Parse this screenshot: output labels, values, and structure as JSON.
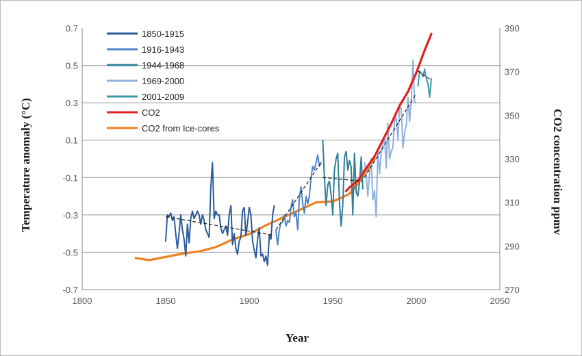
{
  "chart_data": {
    "type": "line",
    "xlabel": "Year",
    "ylabel": "Temperature anomaly (°C)",
    "y2label": "CO2 concentration ppmv",
    "xlim": [
      1800,
      2050
    ],
    "ylim": [
      -0.7,
      0.7
    ],
    "y2lim": [
      270,
      390
    ],
    "x_ticks": [
      "1800",
      "1850",
      "1900",
      "1950",
      "2000",
      "2050"
    ],
    "y_ticks": [
      "0.7",
      "0.5",
      "0.3",
      "0.1",
      "-0.1",
      "-0.3",
      "-0.5",
      "-0.7"
    ],
    "y2_ticks": [
      "390",
      "370",
      "350",
      "330",
      "310",
      "290",
      "270"
    ],
    "grid": "horizontal",
    "legend_position": "top-left",
    "series": [
      {
        "name": "1850-1915",
        "axis": "left",
        "color": "#2a5a9a",
        "x": [
          1850,
          1851,
          1852,
          1853,
          1854,
          1855,
          1856,
          1857,
          1858,
          1859,
          1860,
          1861,
          1862,
          1863,
          1864,
          1865,
          1866,
          1867,
          1868,
          1869,
          1870,
          1871,
          1872,
          1873,
          1874,
          1875,
          1876,
          1877,
          1878,
          1879,
          1880,
          1881,
          1882,
          1883,
          1884,
          1885,
          1886,
          1887,
          1888,
          1889,
          1890,
          1891,
          1892,
          1893,
          1894,
          1895,
          1896,
          1897,
          1898,
          1899,
          1900,
          1901,
          1902,
          1903,
          1904,
          1905,
          1906,
          1907,
          1908,
          1909,
          1910,
          1911,
          1912,
          1913,
          1914,
          1915
        ],
        "y": [
          -0.44,
          -0.3,
          -0.31,
          -0.29,
          -0.33,
          -0.31,
          -0.4,
          -0.48,
          -0.4,
          -0.3,
          -0.38,
          -0.43,
          -0.52,
          -0.35,
          -0.45,
          -0.32,
          -0.28,
          -0.32,
          -0.3,
          -0.28,
          -0.3,
          -0.35,
          -0.3,
          -0.33,
          -0.38,
          -0.4,
          -0.42,
          -0.15,
          -0.02,
          -0.32,
          -0.28,
          -0.3,
          -0.3,
          -0.37,
          -0.4,
          -0.38,
          -0.36,
          -0.41,
          -0.3,
          -0.25,
          -0.46,
          -0.4,
          -0.48,
          -0.51,
          -0.44,
          -0.42,
          -0.28,
          -0.26,
          -0.41,
          -0.34,
          -0.26,
          -0.3,
          -0.44,
          -0.49,
          -0.53,
          -0.43,
          -0.37,
          -0.52,
          -0.51,
          -0.55,
          -0.52,
          -0.57,
          -0.41,
          -0.43,
          -0.3,
          -0.25
        ]
      },
      {
        "name": "1916-1943",
        "axis": "left",
        "color": "#4d82c6",
        "x": [
          1916,
          1917,
          1918,
          1919,
          1920,
          1921,
          1922,
          1923,
          1924,
          1925,
          1926,
          1927,
          1928,
          1929,
          1930,
          1931,
          1932,
          1933,
          1934,
          1935,
          1936,
          1937,
          1938,
          1939,
          1940,
          1941,
          1942,
          1943
        ],
        "y": [
          -0.38,
          -0.46,
          -0.38,
          -0.34,
          -0.34,
          -0.3,
          -0.36,
          -0.33,
          -0.34,
          -0.26,
          -0.22,
          -0.31,
          -0.29,
          -0.38,
          -0.21,
          -0.15,
          -0.24,
          -0.29,
          -0.2,
          -0.24,
          -0.2,
          -0.1,
          -0.04,
          -0.06,
          -0.02,
          0.02,
          -0.04,
          -0.02
        ]
      },
      {
        "name": "1944-1968",
        "axis": "left",
        "color": "#2f7f97",
        "x": [
          1944,
          1945,
          1946,
          1947,
          1948,
          1949,
          1950,
          1951,
          1952,
          1953,
          1954,
          1955,
          1956,
          1957,
          1958,
          1959,
          1960,
          1961,
          1962,
          1963,
          1964,
          1965,
          1966,
          1967,
          1968
        ],
        "y": [
          0.1,
          -0.1,
          -0.25,
          -0.14,
          -0.12,
          -0.19,
          -0.3,
          -0.06,
          0.0,
          0.03,
          -0.23,
          -0.36,
          -0.25,
          0.01,
          0.04,
          -0.06,
          -0.01,
          -0.04,
          -0.3,
          0.03,
          -0.18,
          -0.2,
          -0.13,
          0.01,
          -0.16
        ]
      },
      {
        "name": "1969-2000",
        "axis": "left",
        "color": "#8fb1de",
        "x": [
          1969,
          1970,
          1971,
          1972,
          1973,
          1974,
          1975,
          1976,
          1977,
          1978,
          1979,
          1980,
          1981,
          1982,
          1983,
          1984,
          1985,
          1986,
          1987,
          1988,
          1989,
          1990,
          1991,
          1992,
          1993,
          1994,
          1995,
          1996,
          1997,
          1998,
          1999,
          2000
        ],
        "y": [
          -0.02,
          -0.08,
          -0.2,
          -0.08,
          0.0,
          -0.22,
          -0.17,
          -0.31,
          0.05,
          -0.08,
          0.03,
          0.08,
          0.12,
          -0.05,
          0.19,
          0.0,
          0.04,
          0.06,
          0.2,
          0.22,
          0.1,
          0.28,
          0.27,
          0.06,
          0.14,
          0.18,
          0.33,
          0.2,
          0.31,
          0.53,
          0.3,
          0.3
        ]
      },
      {
        "name": "2001-2009",
        "axis": "left",
        "color": "#3c9aa8",
        "x": [
          2001,
          2002,
          2003,
          2004,
          2005,
          2006,
          2007,
          2008,
          2009
        ],
        "y": [
          0.39,
          0.47,
          0.46,
          0.44,
          0.48,
          0.43,
          0.4,
          0.33,
          0.43
        ]
      },
      {
        "name": "CO2",
        "axis": "right",
        "color": "#e31d1d",
        "x": [
          1958,
          1960,
          1965,
          1970,
          1975,
          1980,
          1985,
          1990,
          1995,
          2000,
          2005,
          2009
        ],
        "y": [
          315.2,
          316.9,
          320.0,
          325.7,
          331.1,
          338.7,
          346.1,
          354.4,
          360.8,
          369.5,
          379.8,
          387.4
        ]
      },
      {
        "name": "CO2 from Ice-cores",
        "axis": "right",
        "color": "#f07f1e",
        "x": [
          1832,
          1840,
          1850,
          1860,
          1870,
          1880,
          1890,
          1900,
          1910,
          1920,
          1930,
          1940,
          1950,
          1955,
          1960,
          1965,
          1970,
          1975
        ],
        "y": [
          284.5,
          283.5,
          285.0,
          286.5,
          287.5,
          289.5,
          293.0,
          295.5,
          299.5,
          303.0,
          306.5,
          310.0,
          310.5,
          312.0,
          314.0,
          318.5,
          324.0,
          330.0
        ]
      }
    ],
    "trend_lines": [
      {
        "x": [
          1850,
          1915
        ],
        "y": [
          -0.31,
          -0.41
        ],
        "color": "#1a1a1a"
      },
      {
        "x": [
          1916,
          1943
        ],
        "y": [
          -0.38,
          -0.02
        ],
        "color": "#1a1a1a"
      },
      {
        "x": [
          1944,
          1968
        ],
        "y": [
          -0.1,
          -0.12
        ],
        "color": "#1a1a1a"
      },
      {
        "x": [
          1969,
          2000
        ],
        "y": [
          -0.1,
          0.35
        ],
        "color": "#1a1a1a"
      },
      {
        "x": [
          2001,
          2009
        ],
        "y": [
          0.47,
          0.42
        ],
        "color": "#1a1a1a"
      }
    ]
  }
}
